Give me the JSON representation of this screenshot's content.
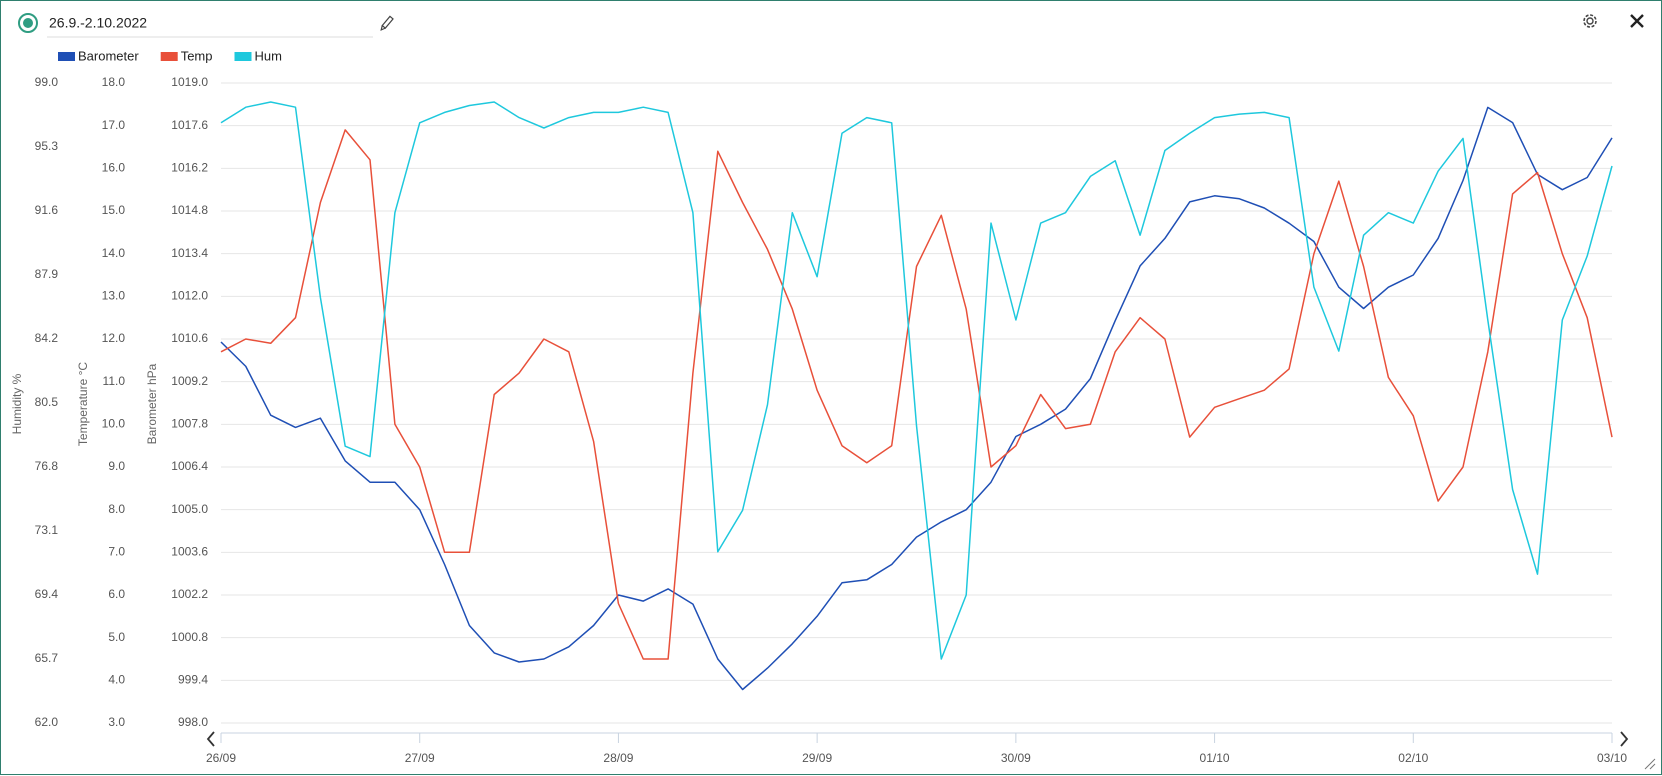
{
  "header": {
    "title": "26.9.-2.10.2022"
  },
  "chart_data": {
    "type": "line",
    "categories": [
      "26/09",
      null,
      null,
      null,
      null,
      null,
      null,
      null,
      "27/09",
      null,
      null,
      null,
      null,
      null,
      null,
      null,
      "28/09",
      null,
      null,
      null,
      null,
      null,
      null,
      null,
      "29/09",
      null,
      null,
      null,
      null,
      null,
      null,
      null,
      "30/09",
      null,
      null,
      null,
      null,
      null,
      null,
      null,
      "01/10",
      null,
      null,
      null,
      null,
      null,
      null,
      null,
      "02/10",
      null,
      null,
      null,
      null,
      null,
      null,
      null,
      "03/10"
    ],
    "series": [
      {
        "name": "Barometer",
        "color": "#1f4fb5",
        "axis": "y",
        "values": [
          1010.5,
          1009.7,
          1008.1,
          1007.7,
          1008.0,
          1006.6,
          1005.9,
          1005.9,
          1005.0,
          1003.2,
          1001.2,
          1000.3,
          1000.0,
          1000.1,
          1000.5,
          1001.2,
          1002.2,
          1002.0,
          1002.4,
          1001.9,
          1000.1,
          999.1,
          999.8,
          1000.6,
          1001.5,
          1002.6,
          1002.7,
          1003.2,
          1004.1,
          1004.6,
          1005.0,
          1005.9,
          1007.4,
          1007.8,
          1008.3,
          1009.3,
          1011.2,
          1013.0,
          1013.9,
          1015.1,
          1015.3,
          1015.2,
          1014.9,
          1014.4,
          1013.8,
          1012.3,
          1011.6,
          1012.3,
          1012.7,
          1013.9,
          1015.8,
          1018.2,
          1017.7,
          1016.0,
          1015.5,
          1015.9,
          1017.2
        ]
      },
      {
        "name": "Temp",
        "color": "#e8503a",
        "axis": "y2",
        "values": [
          11.7,
          12.0,
          11.9,
          12.5,
          15.2,
          16.9,
          16.2,
          10.0,
          9.0,
          7.0,
          7.0,
          10.7,
          11.2,
          12.0,
          11.7,
          9.6,
          5.8,
          4.5,
          4.5,
          11.2,
          16.4,
          15.2,
          14.1,
          12.7,
          10.8,
          9.5,
          9.1,
          9.5,
          13.7,
          14.9,
          12.7,
          9.0,
          9.5,
          10.7,
          9.9,
          10.0,
          11.7,
          12.5,
          12.0,
          9.7,
          10.4,
          10.6,
          10.8,
          11.3,
          14.0,
          15.7,
          13.7,
          11.1,
          10.2,
          8.2,
          9.0,
          11.7,
          15.4,
          15.9,
          14.0,
          12.5,
          9.7
        ]
      },
      {
        "name": "Hum",
        "color": "#1ec8dd",
        "axis": "y3",
        "values": [
          96.7,
          97.6,
          97.9,
          97.6,
          86.6,
          78.0,
          77.4,
          91.5,
          96.7,
          97.3,
          97.7,
          97.9,
          97.0,
          96.4,
          97.0,
          97.3,
          97.3,
          97.6,
          97.3,
          91.5,
          71.9,
          74.3,
          80.4,
          91.5,
          87.8,
          96.1,
          97.0,
          96.7,
          79.2,
          65.7,
          69.4,
          90.9,
          85.3,
          90.9,
          91.5,
          93.6,
          94.5,
          90.2,
          95.1,
          96.1,
          97.0,
          97.2,
          97.3,
          97.0,
          87.2,
          83.5,
          90.2,
          91.5,
          90.9,
          93.9,
          95.8,
          85.3,
          75.5,
          70.6,
          85.3,
          89.0,
          94.2
        ]
      }
    ],
    "y_label": "Barometer hPa",
    "y2_label": "Temperature °C",
    "y3_label": "Humidity %",
    "ylim": [
      998.0,
      1019.0
    ],
    "yticks": [
      {
        "value": 998,
        "label": "998.0"
      },
      999.4,
      1000.8,
      1002.2,
      1003.6,
      {
        "value": 1005,
        "label": "1005.0"
      },
      1006.4,
      1007.8,
      1009.2,
      1010.6,
      {
        "value": 1012,
        "label": "1012.0"
      },
      1013.4,
      1014.8,
      1016.2,
      1017.6,
      {
        "value": 1019,
        "label": "1019.0"
      }
    ],
    "y2lim": [
      3.0,
      18.0
    ],
    "y2ticks": [
      {
        "value": 3,
        "label": "3.0"
      },
      {
        "value": 4,
        "label": "4.0"
      },
      {
        "value": 5,
        "label": "5.0"
      },
      {
        "value": 6,
        "label": "6.0"
      },
      {
        "value": 7,
        "label": "7.0"
      },
      {
        "value": 8,
        "label": "8.0"
      },
      {
        "value": 9,
        "label": "9.0"
      },
      {
        "value": 10,
        "label": "10.0"
      },
      {
        "value": 11,
        "label": "11.0"
      },
      {
        "value": 12,
        "label": "12.0"
      },
      {
        "value": 13,
        "label": "13.0"
      },
      {
        "value": 14,
        "label": "14.0"
      },
      {
        "value": 15,
        "label": "15.0"
      },
      {
        "value": 16,
        "label": "16.0"
      },
      {
        "value": 17,
        "label": "17.0"
      },
      {
        "value": 18,
        "label": "18.0"
      }
    ],
    "y3lim": [
      62.0,
      99.0
    ],
    "y3ticks": [
      {
        "value": 62,
        "label": "62.0"
      },
      65.7,
      69.4,
      73.1,
      76.8,
      80.5,
      84.2,
      87.9,
      91.6,
      95.3,
      {
        "value": 99,
        "label": "99.0"
      }
    ],
    "grid": true,
    "legend": "top-left"
  }
}
